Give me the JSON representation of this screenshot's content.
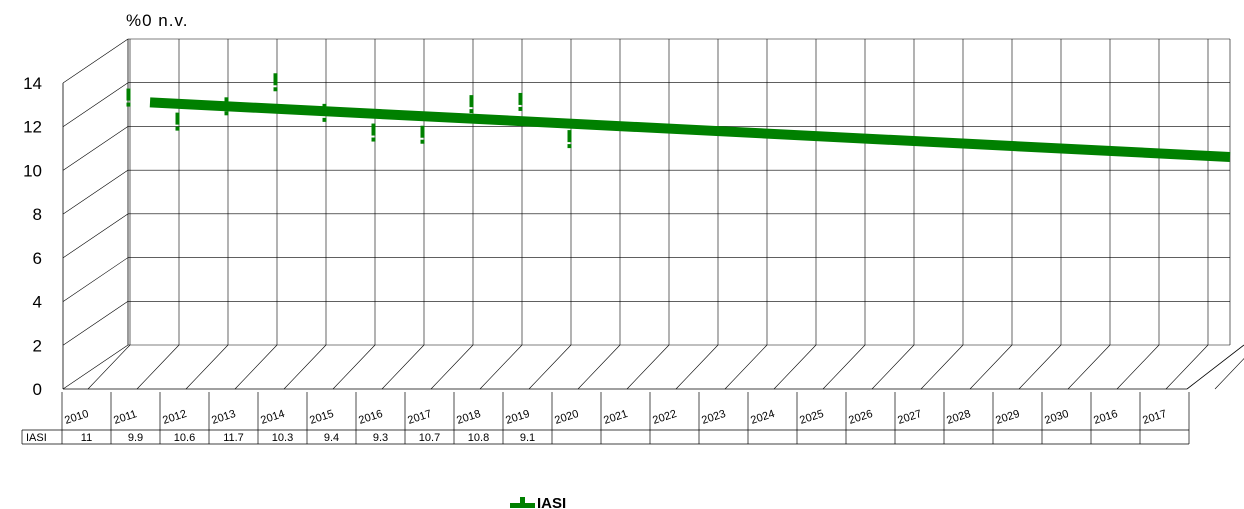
{
  "chart_data": {
    "type": "line",
    "title": "",
    "ylabel": "%0 n.v.",
    "xlabel": "",
    "ylim": [
      0,
      14
    ],
    "y_ticks": [
      0,
      2,
      4,
      6,
      8,
      10,
      12,
      14
    ],
    "grid": true,
    "categories": [
      "2010",
      "2011",
      "2012",
      "2013",
      "2014",
      "2015",
      "2016",
      "2017",
      "2018",
      "2019",
      "2020",
      "2021",
      "2022",
      "2023",
      "2024",
      "2025",
      "2026",
      "2027",
      "2028",
      "2029",
      "2030",
      "2016",
      "2017"
    ],
    "series": [
      {
        "name": "IASI",
        "color": "#008000",
        "values": [
          11,
          9.9,
          10.6,
          11.7,
          10.3,
          9.4,
          9.3,
          10.7,
          10.8,
          9.1,
          null,
          null,
          null,
          null,
          null,
          null,
          null,
          null,
          null,
          null,
          null,
          null,
          null
        ],
        "table_values": [
          "11",
          "9.9",
          "10.6",
          "11.7",
          "10.3",
          "9.4",
          "9.3",
          "10.7",
          "10.8",
          "9.1",
          "",
          "",
          "",
          "",
          "",
          "",
          "",
          "",
          "",
          "",
          "",
          "",
          ""
        ],
        "trendline": {
          "start": 11.1,
          "end": 8.6
        }
      }
    ],
    "legend": {
      "position": "bottom"
    }
  }
}
